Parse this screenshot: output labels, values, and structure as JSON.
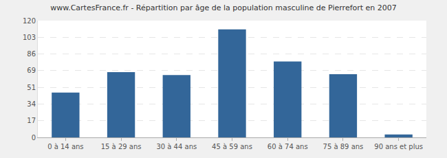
{
  "chart_data": {
    "type": "bar",
    "title": "www.CartesFrance.fr - Répartition par âge de la population masculine de Pierrefort en 2007",
    "categories": [
      "0 à 14 ans",
      "15 à 29 ans",
      "30 à 44 ans",
      "45 à 59 ans",
      "60 à 74 ans",
      "75 à 89 ans",
      "90 ans et plus"
    ],
    "values": [
      46,
      67,
      64,
      111,
      78,
      65,
      3
    ],
    "color": "#336699",
    "ylim": [
      0,
      120
    ],
    "yticks": [
      0,
      17,
      34,
      51,
      69,
      86,
      103,
      120
    ],
    "grid": true
  }
}
